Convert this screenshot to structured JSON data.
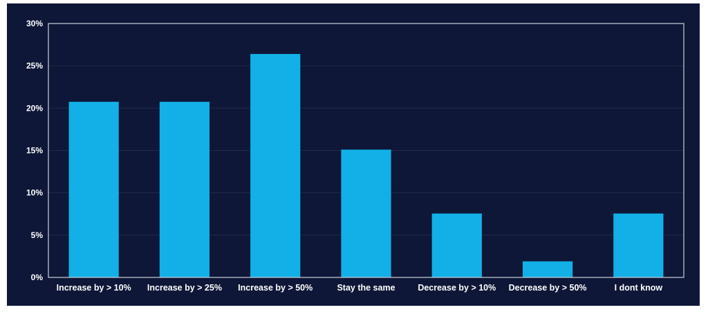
{
  "colors": {
    "background": "#0e1737",
    "bar": "#12b0e6",
    "text": "#ffffff",
    "grid": "#1f2b4d",
    "border": "#c9cfdc"
  },
  "chart_data": {
    "type": "bar",
    "title": "",
    "xlabel": "",
    "ylabel": "",
    "categories": [
      "Increase by > 10%",
      "Increase by > 25%",
      "Increase by > 50%",
      "Stay the same",
      "Decrease by > 10%",
      "Decrease by > 50%",
      "I dont know"
    ],
    "values": [
      20.75,
      20.75,
      26.4,
      15.1,
      7.55,
      1.9,
      7.55
    ],
    "ylim": [
      0,
      30
    ],
    "yticks": [
      0,
      5,
      10,
      15,
      20,
      25,
      30
    ],
    "ytick_labels": [
      "0%",
      "5%",
      "10%",
      "15%",
      "20%",
      "25%",
      "30%"
    ],
    "grid": true,
    "legend": "none"
  }
}
